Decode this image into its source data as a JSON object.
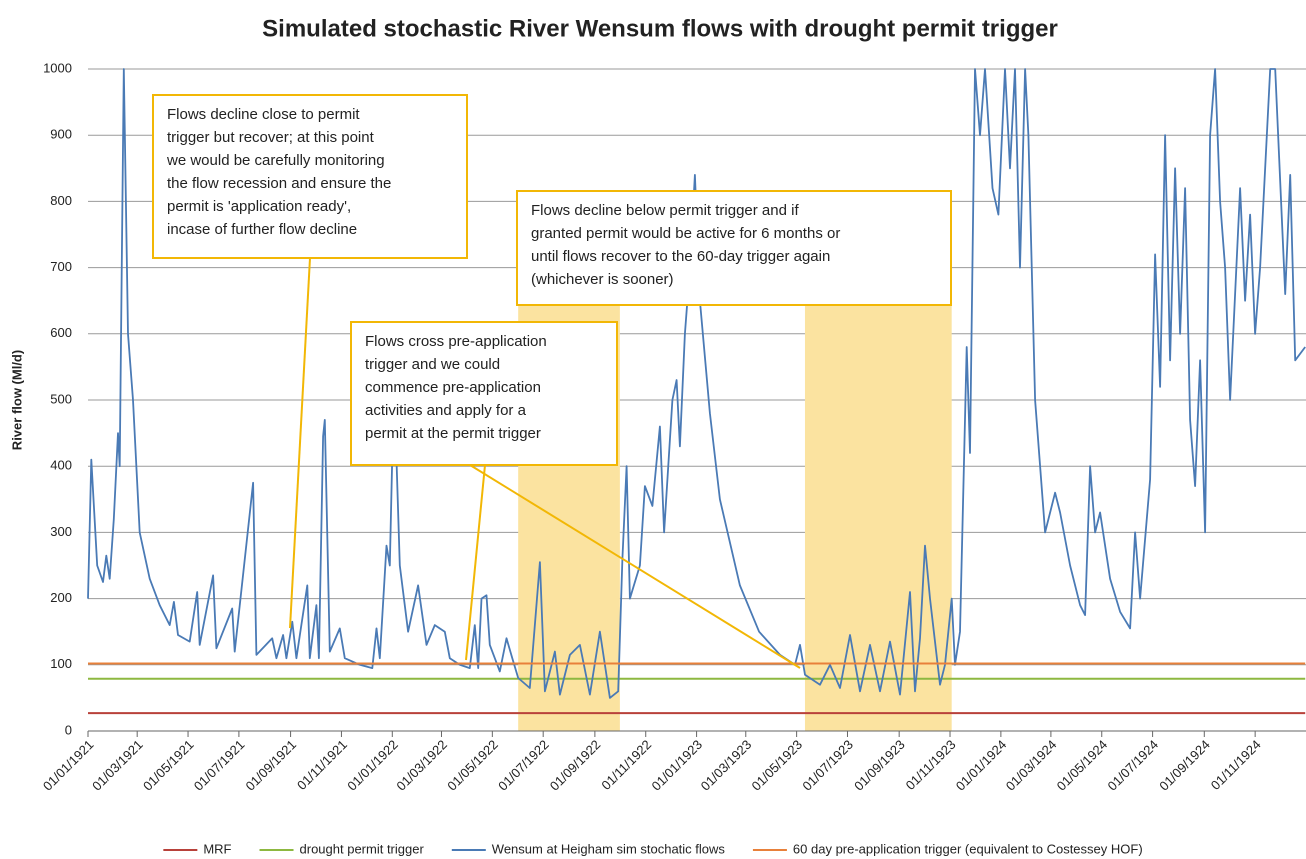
{
  "chart_data": {
    "type": "line",
    "title": "Simulated stochastic River Wensum flows with drought permit trigger",
    "ylabel": "River flow (Ml/d)",
    "ylim": [
      0,
      1000
    ],
    "yticks": [
      0,
      100,
      200,
      300,
      400,
      500,
      600,
      700,
      800,
      900,
      1000
    ],
    "grid": true,
    "xlim": [
      "01/01/1921",
      "01/01/1925"
    ],
    "xticks": [
      "01/01/1921",
      "01/03/1921",
      "01/05/1921",
      "01/07/1921",
      "01/09/1921",
      "01/11/1921",
      "01/01/1922",
      "01/03/1922",
      "01/05/1922",
      "01/07/1922",
      "01/09/1922",
      "01/11/1922",
      "01/01/1923",
      "01/03/1923",
      "01/05/1923",
      "01/07/1923",
      "01/09/1923",
      "01/11/1923",
      "01/01/1924",
      "01/03/1924",
      "01/05/1924",
      "01/07/1924",
      "01/09/1924",
      "01/11/1924"
    ],
    "legend": "bottom",
    "shaded_periods": [
      {
        "start": "01/06/1922",
        "end": "01/10/1922"
      },
      {
        "start": "11/05/1923",
        "end": "03/11/1923"
      }
    ],
    "shade_color": "#fbe3a0",
    "annotation_color": "#f2b705",
    "annotations": [
      {
        "lines": [
          "Flows decline close to permit",
          "trigger but recover; at this point",
          "we would be carefully monitoring",
          "the flow recession and ensure the",
          "permit is 'application ready',",
          "incase of further flow decline"
        ]
      },
      {
        "lines": [
          "Flows decline below permit trigger and if",
          "granted permit would be active for 6 months or",
          "until  flows recover to the 60-day trigger again",
          "(whichever is sooner)"
        ]
      },
      {
        "lines": [
          "Flows cross pre-application",
          "trigger and we could",
          "commence pre-application",
          "activities and apply for a",
          "permit at the permit trigger"
        ]
      }
    ],
    "series": [
      {
        "name": "MRF",
        "color": "#b8413a",
        "x": [
          "01/01/1921",
          "31/12/1924"
        ],
        "values": [
          27,
          27
        ]
      },
      {
        "name": "drought permit  trigger",
        "color": "#8db840",
        "x": [
          "01/01/1921",
          "31/12/1924"
        ],
        "values": [
          79,
          79
        ]
      },
      {
        "name": "Wensum at Heigham sim stochatic flows",
        "color": "#4a7ab5",
        "x": [
          "01/01/1921",
          "05/01/1921",
          "12/01/1921",
          "19/01/1921",
          "23/01/1921",
          "27/01/1921",
          "01/02/1921",
          "06/02/1921",
          "08/02/1921",
          "13/02/1921",
          "18/02/1921",
          "24/02/1921",
          "04/03/1921",
          "16/03/1921",
          "28/03/1921",
          "09/04/1921",
          "14/04/1921",
          "19/04/1921",
          "03/05/1921",
          "12/05/1921",
          "15/05/1921",
          "31/05/1921",
          "04/06/1921",
          "23/06/1921",
          "26/06/1921",
          "18/07/1921",
          "22/07/1921",
          "10/08/1921",
          "15/08/1921",
          "23/08/1921",
          "27/08/1921",
          "03/09/1921",
          "08/09/1921",
          "21/09/1921",
          "24/09/1921",
          "02/10/1921",
          "05/10/1921",
          "10/10/1921",
          "12/10/1921",
          "18/10/1921",
          "30/10/1921",
          "05/11/1921",
          "23/11/1921",
          "08/12/1921",
          "13/12/1921",
          "17/12/1921",
          "25/12/1921",
          "29/12/1921",
          "03/01/1922",
          "10/01/1922",
          "20/01/1922",
          "01/02/1922",
          "11/02/1922",
          "21/02/1922",
          "05/03/1922",
          "11/03/1922",
          "23/03/1922",
          "04/04/1922",
          "10/04/1922",
          "14/04/1922",
          "18/04/1922",
          "24/04/1922",
          "28/04/1922",
          "10/05/1922",
          "18/05/1922",
          "25/05/1922",
          "01/06/1922",
          "15/06/1922",
          "27/06/1922",
          "03/07/1922",
          "15/07/1922",
          "21/07/1922",
          "02/08/1922",
          "14/08/1922",
          "26/08/1922",
          "07/09/1922",
          "19/09/1922",
          "29/09/1922",
          "04/10/1922",
          "09/10/1922",
          "13/10/1922",
          "25/10/1922",
          "31/10/1922",
          "09/11/1922",
          "18/11/1922",
          "23/11/1922",
          "03/12/1922",
          "08/12/1922",
          "12/12/1922",
          "18/12/1922",
          "24/12/1922",
          "30/12/1922",
          "05/01/1923",
          "17/01/1923",
          "29/01/1923",
          "22/02/1923",
          "17/03/1923",
          "11/04/1923",
          "29/04/1923",
          "05/05/1923",
          "11/05/1923",
          "29/05/1923",
          "10/06/1923",
          "22/06/1923",
          "04/07/1923",
          "16/07/1923",
          "28/07/1923",
          "09/08/1923",
          "21/08/1923",
          "02/09/1923",
          "14/09/1923",
          "20/09/1923",
          "26/09/1923",
          "02/10/1923",
          "08/10/1923",
          "20/10/1923",
          "26/10/1923",
          "03/11/1923",
          "07/11/1923",
          "13/11/1923",
          "21/11/1923",
          "25/11/1923",
          "01/12/1923",
          "07/12/1923",
          "13/12/1923",
          "22/12/1923",
          "29/12/1923",
          "06/01/1924",
          "12/01/1924",
          "18/01/1924",
          "24/01/1924",
          "30/01/1924",
          "03/02/1924",
          "11/02/1924",
          "23/02/1924",
          "06/03/1924",
          "12/03/1924",
          "24/03/1924",
          "05/04/1924",
          "11/04/1924",
          "17/04/1924",
          "23/04/1924",
          "29/04/1924",
          "11/05/1924",
          "23/05/1924",
          "04/06/1924",
          "10/06/1924",
          "16/06/1924",
          "28/06/1924",
          "04/07/1924",
          "10/07/1924",
          "16/07/1924",
          "22/07/1924",
          "28/07/1924",
          "03/08/1924",
          "09/08/1924",
          "15/08/1924",
          "21/08/1924",
          "27/08/1924",
          "02/09/1924",
          "08/09/1924",
          "14/09/1924",
          "20/09/1924",
          "26/09/1924",
          "02/10/1924",
          "14/10/1924",
          "20/10/1924",
          "26/10/1924",
          "01/11/1924",
          "07/11/1924",
          "19/11/1924",
          "25/11/1924",
          "07/12/1924",
          "13/12/1924",
          "19/12/1924",
          "31/12/1924"
        ],
        "values": [
          200,
          410,
          250,
          225,
          265,
          230,
          320,
          450,
          400,
          1000,
          600,
          500,
          300,
          230,
          190,
          160,
          195,
          145,
          135,
          210,
          130,
          235,
          125,
          185,
          120,
          375,
          115,
          140,
          110,
          145,
          110,
          165,
          110,
          220,
          110,
          190,
          110,
          445,
          470,
          120,
          155,
          110,
          100,
          95,
          155,
          110,
          280,
          250,
          530,
          250,
          150,
          220,
          130,
          160,
          150,
          110,
          100,
          95,
          160,
          95,
          200,
          205,
          130,
          90,
          140,
          110,
          80,
          65,
          255,
          60,
          120,
          55,
          115,
          130,
          55,
          150,
          50,
          60,
          260,
          400,
          200,
          250,
          370,
          340,
          460,
          300,
          500,
          530,
          430,
          600,
          700,
          840,
          650,
          480,
          350,
          220,
          150,
          115,
          100,
          130,
          85,
          70,
          100,
          65,
          145,
          60,
          130,
          60,
          135,
          55,
          210,
          60,
          140,
          280,
          200,
          70,
          100,
          200,
          100,
          150,
          580,
          420,
          1000,
          900,
          1000,
          820,
          780,
          1000,
          850,
          1000,
          700,
          1000,
          900,
          500,
          300,
          360,
          330,
          250,
          190,
          175,
          400,
          300,
          330,
          230,
          180,
          155,
          300,
          200,
          380,
          720,
          520,
          900,
          560,
          850,
          600,
          820,
          470,
          370,
          560,
          300,
          900,
          1000,
          800,
          700,
          500,
          820,
          650,
          780,
          600,
          700,
          1000,
          1000,
          660,
          840,
          560,
          580
        ]
      },
      {
        "name": "60 day pre-application trigger (equivalent to Costessey HOF)",
        "color": "#e8803a",
        "x": [
          "01/01/1921",
          "31/12/1924"
        ],
        "values": [
          102,
          102
        ]
      }
    ]
  }
}
